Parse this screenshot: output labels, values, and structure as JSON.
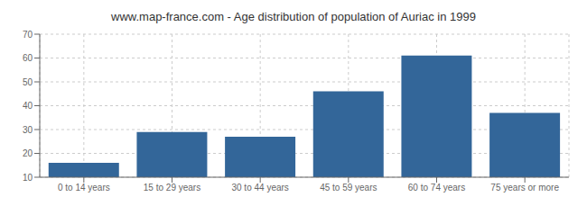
{
  "chart_data": {
    "type": "bar",
    "title": "www.map-france.com - Age distribution of population of Auriac in 1999",
    "categories": [
      "0 to 14 years",
      "15 to 29 years",
      "30 to 44 years",
      "45 to 59 years",
      "60 to 74 years",
      "75 years or more"
    ],
    "values": [
      16,
      29,
      27,
      46,
      61,
      37
    ],
    "color": "#336699",
    "ylim": [
      10,
      70
    ],
    "yticks": [
      10,
      20,
      30,
      40,
      50,
      60,
      70
    ],
    "grid": true
  }
}
